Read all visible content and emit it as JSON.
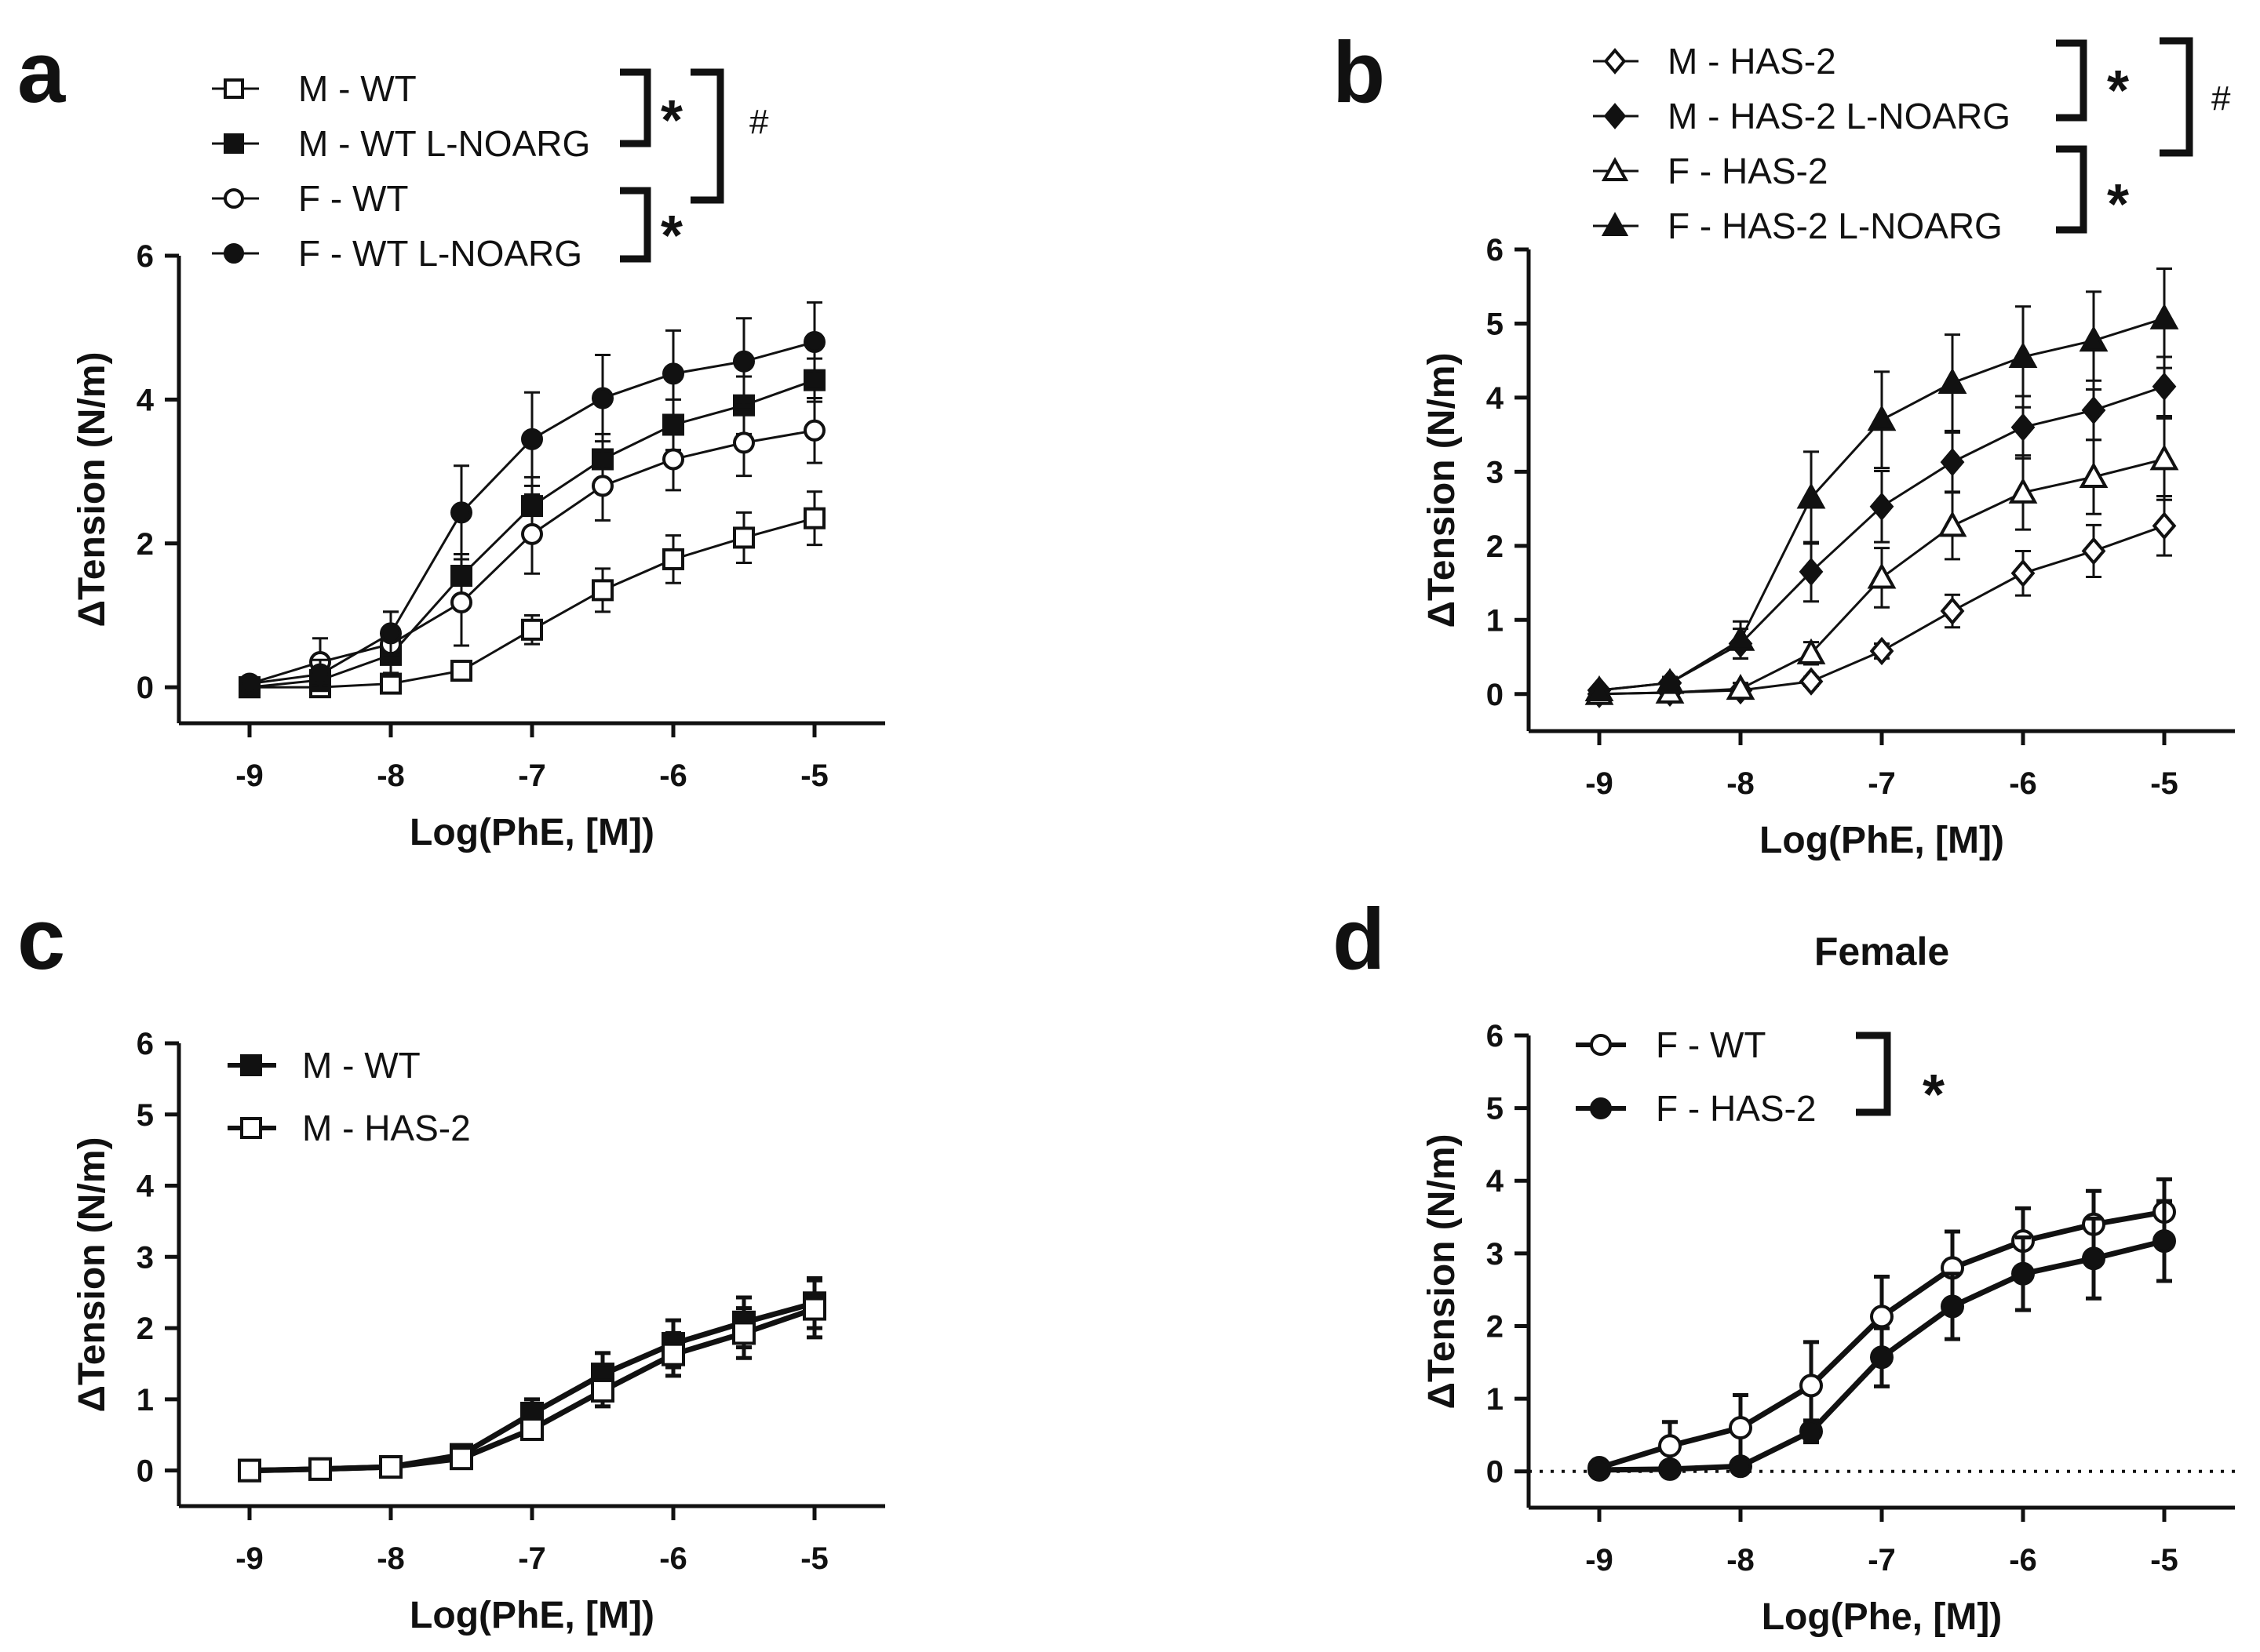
{
  "chart_data": [
    {
      "panel": "a",
      "type": "line",
      "title": "",
      "xlabel": "Log(PhE, [M])",
      "ylabel": "ΔTension (N/m)",
      "x": [
        -9,
        -8.5,
        -8,
        -7.5,
        -7,
        -6.5,
        -6,
        -5.5,
        -5
      ],
      "xticks": [
        -9,
        -8,
        -7,
        -6,
        -5
      ],
      "xtick_labels": [
        "-9",
        "-8",
        "-7",
        "-6",
        "-5"
      ],
      "yticks": [
        0,
        2,
        4,
        6
      ],
      "ytick_labels": [
        "0",
        "2",
        "4",
        "6"
      ],
      "xlim": [
        -9.5,
        -4.5
      ],
      "ylim": [
        -0.5,
        6
      ],
      "series": [
        {
          "name": "M - WT",
          "marker": "open-square",
          "values": [
            0,
            0,
            0.05,
            0.23,
            0.8,
            1.35,
            1.78,
            2.08,
            2.35
          ],
          "errors": [
            0.05,
            0.05,
            0.1,
            0.1,
            0.2,
            0.3,
            0.33,
            0.35,
            0.37
          ]
        },
        {
          "name": "M - WT L-NOARG",
          "marker": "filled-square",
          "values": [
            0,
            0.1,
            0.45,
            1.55,
            2.52,
            3.17,
            3.65,
            3.92,
            4.27
          ],
          "errors": [
            0.05,
            0.15,
            0.25,
            0.3,
            0.4,
            0.35,
            0.35,
            0.4,
            0.3
          ]
        },
        {
          "name": "F - WT",
          "marker": "open-circle",
          "values": [
            0.05,
            0.35,
            0.6,
            1.18,
            2.13,
            2.8,
            3.17,
            3.4,
            3.57
          ],
          "errors": [
            0.05,
            0.33,
            0.45,
            0.6,
            0.55,
            0.48,
            0.43,
            0.46,
            0.45
          ]
        },
        {
          "name": "F - WT L-NOARG",
          "marker": "filled-circle",
          "values": [
            0.05,
            0.18,
            0.75,
            2.43,
            3.45,
            4.02,
            4.36,
            4.53,
            4.8
          ],
          "errors": [
            0.05,
            0.2,
            0.3,
            0.65,
            0.65,
            0.6,
            0.6,
            0.6,
            0.55
          ]
        }
      ],
      "brackets": [
        {
          "label": "*",
          "between": [
            "M - WT",
            "M - WT L-NOARG"
          ]
        },
        {
          "label": "*",
          "between": [
            "F - WT",
            "F - WT L-NOARG"
          ]
        },
        {
          "label": "#",
          "between": [
            "M - WT / M - WT L-NOARG",
            "F - WT / F - WT L-NOARG"
          ]
        }
      ]
    },
    {
      "panel": "b",
      "type": "line",
      "title": "",
      "xlabel": "Log(PhE, [M])",
      "ylabel": "ΔTension (N/m)",
      "x": [
        -9,
        -8.5,
        -8,
        -7.5,
        -7,
        -6.5,
        -6,
        -5.5,
        -5
      ],
      "xticks": [
        -9,
        -8,
        -7,
        -6,
        -5
      ],
      "xtick_labels": [
        "-9",
        "-8",
        "-7",
        "-6",
        "-5"
      ],
      "yticks": [
        0,
        1,
        2,
        3,
        4,
        5,
        6
      ],
      "ytick_labels": [
        "0",
        "1",
        "2",
        "3",
        "4",
        "5",
        "6"
      ],
      "xlim": [
        -9.5,
        -4.5
      ],
      "ylim": [
        -0.5,
        6
      ],
      "series": [
        {
          "name": "M - HAS-2",
          "marker": "open-diamond",
          "values": [
            0,
            0.02,
            0.05,
            0.17,
            0.58,
            1.12,
            1.63,
            1.93,
            2.27
          ],
          "errors": [
            0.03,
            0.03,
            0.05,
            0.06,
            0.1,
            0.22,
            0.3,
            0.35,
            0.4
          ]
        },
        {
          "name": "M - HAS-2 L-NOARG",
          "marker": "filled-diamond",
          "values": [
            0.05,
            0.15,
            0.68,
            1.65,
            2.53,
            3.13,
            3.6,
            3.83,
            4.15
          ],
          "errors": [
            0.05,
            0.08,
            0.2,
            0.4,
            0.48,
            0.4,
            0.42,
            0.4,
            0.4
          ]
        },
        {
          "name": "F - HAS-2",
          "marker": "open-triangle",
          "values": [
            0,
            0.02,
            0.07,
            0.55,
            1.57,
            2.27,
            2.72,
            2.93,
            3.17
          ],
          "errors": [
            0.03,
            0.03,
            0.08,
            0.15,
            0.4,
            0.45,
            0.5,
            0.5,
            0.55
          ]
        },
        {
          "name": "F - HAS-2 L-NOARG",
          "marker": "filled-triangle",
          "values": [
            0.05,
            0.15,
            0.73,
            2.65,
            3.7,
            4.2,
            4.55,
            4.77,
            5.07
          ],
          "errors": [
            0.05,
            0.08,
            0.25,
            0.62,
            0.65,
            0.65,
            0.68,
            0.66,
            0.67
          ]
        }
      ],
      "brackets": [
        {
          "label": "*",
          "between": [
            "M - HAS-2",
            "M - HAS-2 L-NOARG"
          ]
        },
        {
          "label": "*",
          "between": [
            "F - HAS-2",
            "F - HAS-2 L-NOARG"
          ]
        },
        {
          "label": "#",
          "between": [
            "M - HAS-2 / M - HAS-2 L-NOARG",
            "F - HAS-2"
          ]
        }
      ]
    },
    {
      "panel": "c",
      "type": "line",
      "title": "",
      "xlabel": "Log(PhE, [M])",
      "ylabel": "ΔTension (N/m)",
      "x": [
        -9,
        -8.5,
        -8,
        -7.5,
        -7,
        -6.5,
        -6,
        -5.5,
        -5
      ],
      "xticks": [
        -9,
        -8,
        -7,
        -6,
        -5
      ],
      "xtick_labels": [
        "-9",
        "-8",
        "-7",
        "-6",
        "-5"
      ],
      "yticks": [
        0,
        1,
        2,
        3,
        4,
        5,
        6
      ],
      "ytick_labels": [
        "0",
        "1",
        "2",
        "3",
        "4",
        "5",
        "6"
      ],
      "xlim": [
        -9.5,
        -4.5
      ],
      "ylim": [
        -0.5,
        6
      ],
      "series": [
        {
          "name": "M - WT",
          "marker": "filled-square",
          "values": [
            0,
            0.02,
            0.05,
            0.22,
            0.8,
            1.35,
            1.78,
            2.08,
            2.35
          ],
          "errors": [
            0.03,
            0.03,
            0.05,
            0.07,
            0.2,
            0.3,
            0.33,
            0.35,
            0.35
          ]
        },
        {
          "name": "M - HAS-2",
          "marker": "open-square",
          "values": [
            0,
            0.02,
            0.05,
            0.17,
            0.58,
            1.12,
            1.63,
            1.93,
            2.27
          ],
          "errors": [
            0.03,
            0.03,
            0.05,
            0.06,
            0.12,
            0.22,
            0.3,
            0.35,
            0.4
          ]
        }
      ],
      "brackets": []
    },
    {
      "panel": "d",
      "type": "line",
      "title": "Female",
      "xlabel": "Log(Phe, [M])",
      "ylabel": "ΔTension (N/m)",
      "x": [
        -9,
        -8.5,
        -8,
        -7.5,
        -7,
        -6.5,
        -6,
        -5.5,
        -5
      ],
      "xticks": [
        -9,
        -8,
        -7,
        -6,
        -5
      ],
      "xtick_labels": [
        "-9",
        "-8",
        "-7",
        "-6",
        "-5"
      ],
      "yticks": [
        0,
        1,
        2,
        3,
        4,
        5,
        6
      ],
      "ytick_labels": [
        "0",
        "1",
        "2",
        "3",
        "4",
        "5",
        "6"
      ],
      "xlim": [
        -9.5,
        -4.5
      ],
      "ylim": [
        -0.5,
        6
      ],
      "dotted_baseline": 0,
      "series": [
        {
          "name": "F - WT",
          "marker": "open-circle",
          "values": [
            0.05,
            0.35,
            0.6,
            1.18,
            2.13,
            2.8,
            3.17,
            3.4,
            3.57
          ],
          "errors": [
            0.05,
            0.33,
            0.45,
            0.6,
            0.55,
            0.5,
            0.45,
            0.46,
            0.45
          ]
        },
        {
          "name": "F - HAS-2",
          "marker": "filled-circle",
          "values": [
            0.02,
            0.03,
            0.07,
            0.55,
            1.57,
            2.27,
            2.72,
            2.93,
            3.17
          ],
          "errors": [
            0.03,
            0.03,
            0.08,
            0.15,
            0.4,
            0.45,
            0.5,
            0.55,
            0.55
          ]
        }
      ],
      "brackets": [
        {
          "label": "*",
          "between": [
            "F - WT",
            "F - HAS-2"
          ]
        }
      ]
    }
  ]
}
